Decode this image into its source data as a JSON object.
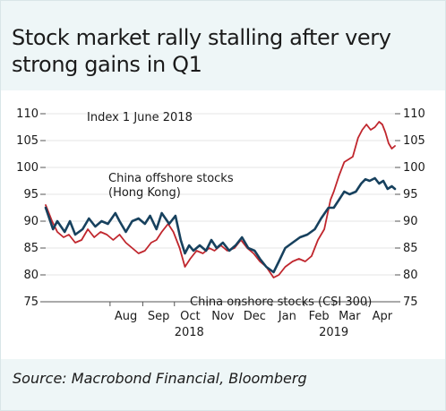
{
  "title": "Stock market rally stalling after very strong gains in Q1",
  "source": "Source: Macrobond Financial, Bloomberg",
  "colors": {
    "background": "#eef6f7",
    "plot_background": "#ffffff",
    "offshore_series": "#17415e",
    "onshore_series": "#c0262d"
  },
  "chart_data": {
    "type": "line",
    "annotation": "Index 1 June 2018",
    "ylim": [
      75,
      110
    ],
    "y_ticks": [
      75,
      80,
      85,
      90,
      95,
      100,
      105,
      110
    ],
    "y_tick_labels": [
      "75",
      "80",
      "85",
      "90",
      "95",
      "100",
      "105",
      "110"
    ],
    "x_range": [
      "2018-06-01",
      "2019-04-28"
    ],
    "month_labels": [
      {
        "label": "Aug",
        "date": "2018-08-16"
      },
      {
        "label": "Sep",
        "date": "2018-09-16"
      },
      {
        "label": "Oct",
        "date": "2018-10-16"
      },
      {
        "label": "Nov",
        "date": "2018-11-16"
      },
      {
        "label": "Dec",
        "date": "2018-12-16"
      },
      {
        "label": "Jan",
        "date": "2019-01-16"
      },
      {
        "label": "Feb",
        "date": "2019-02-15"
      },
      {
        "label": "Mar",
        "date": "2019-03-16"
      },
      {
        "label": "Apr",
        "date": "2019-04-16"
      }
    ],
    "month_ticks": [
      "2018-08-01",
      "2018-09-01",
      "2018-10-01",
      "2018-11-01",
      "2018-12-01",
      "2019-01-01",
      "2019-02-01",
      "2019-03-01",
      "2019-04-01"
    ],
    "year_labels": [
      {
        "label": "2018",
        "date": "2018-10-15"
      },
      {
        "label": "2019",
        "date": "2019-03-01"
      }
    ],
    "series": [
      {
        "name": "China offshore stocks (Hong Kong)",
        "color": "#17415e",
        "points": [
          [
            "2018-06-01",
            92.5
          ],
          [
            "2018-06-08",
            88.5
          ],
          [
            "2018-06-12",
            90
          ],
          [
            "2018-06-19",
            88
          ],
          [
            "2018-06-24",
            90
          ],
          [
            "2018-06-29",
            87.5
          ],
          [
            "2018-07-06",
            88.5
          ],
          [
            "2018-07-12",
            90.5
          ],
          [
            "2018-07-18",
            89
          ],
          [
            "2018-07-24",
            90
          ],
          [
            "2018-07-30",
            89.5
          ],
          [
            "2018-08-06",
            91.5
          ],
          [
            "2018-08-10",
            90
          ],
          [
            "2018-08-16",
            88
          ],
          [
            "2018-08-22",
            90
          ],
          [
            "2018-08-28",
            90.5
          ],
          [
            "2018-09-03",
            89.5
          ],
          [
            "2018-09-08",
            91
          ],
          [
            "2018-09-14",
            88.5
          ],
          [
            "2018-09-19",
            91.5
          ],
          [
            "2018-09-26",
            89.5
          ],
          [
            "2018-10-02",
            91
          ],
          [
            "2018-10-07",
            86.5
          ],
          [
            "2018-10-11",
            84
          ],
          [
            "2018-10-15",
            85.5
          ],
          [
            "2018-10-19",
            84.5
          ],
          [
            "2018-10-25",
            85.5
          ],
          [
            "2018-10-31",
            84.5
          ],
          [
            "2018-11-05",
            86.5
          ],
          [
            "2018-11-10",
            85
          ],
          [
            "2018-11-16",
            86
          ],
          [
            "2018-11-22",
            84.5
          ],
          [
            "2018-11-28",
            85.5
          ],
          [
            "2018-12-04",
            87
          ],
          [
            "2018-12-10",
            85
          ],
          [
            "2018-12-16",
            84.5
          ],
          [
            "2018-12-21",
            83
          ],
          [
            "2018-12-27",
            81.5
          ],
          [
            "2019-01-03",
            80.5
          ],
          [
            "2019-01-08",
            82.5
          ],
          [
            "2019-01-14",
            85
          ],
          [
            "2019-01-21",
            86
          ],
          [
            "2019-01-28",
            87
          ],
          [
            "2019-02-04",
            87.5
          ],
          [
            "2019-02-11",
            88.5
          ],
          [
            "2019-02-17",
            90.5
          ],
          [
            "2019-02-24",
            92.5
          ],
          [
            "2019-03-01",
            92.5
          ],
          [
            "2019-03-06",
            94
          ],
          [
            "2019-03-11",
            95.5
          ],
          [
            "2019-03-16",
            95
          ],
          [
            "2019-03-22",
            95.5
          ],
          [
            "2019-03-27",
            97
          ],
          [
            "2019-03-31",
            97.8
          ],
          [
            "2019-04-04",
            97.5
          ],
          [
            "2019-04-09",
            98
          ],
          [
            "2019-04-13",
            97
          ],
          [
            "2019-04-17",
            97.5
          ],
          [
            "2019-04-21",
            96
          ],
          [
            "2019-04-25",
            96.5
          ],
          [
            "2019-04-28",
            96
          ]
        ]
      },
      {
        "name": "China onshore stocks (CSI 300)",
        "color": "#c0262d",
        "points": [
          [
            "2018-06-01",
            93
          ],
          [
            "2018-06-07",
            90
          ],
          [
            "2018-06-12",
            88
          ],
          [
            "2018-06-18",
            87
          ],
          [
            "2018-06-23",
            87.5
          ],
          [
            "2018-06-29",
            86
          ],
          [
            "2018-07-05",
            86.5
          ],
          [
            "2018-07-11",
            88.5
          ],
          [
            "2018-07-17",
            87
          ],
          [
            "2018-07-23",
            88
          ],
          [
            "2018-07-29",
            87.5
          ],
          [
            "2018-08-04",
            86.5
          ],
          [
            "2018-08-10",
            87.5
          ],
          [
            "2018-08-16",
            86
          ],
          [
            "2018-08-22",
            85
          ],
          [
            "2018-08-28",
            84
          ],
          [
            "2018-09-03",
            84.5
          ],
          [
            "2018-09-09",
            86
          ],
          [
            "2018-09-14",
            86.5
          ],
          [
            "2018-09-19",
            88
          ],
          [
            "2018-09-25",
            89.5
          ],
          [
            "2018-09-30",
            88
          ],
          [
            "2018-10-06",
            85
          ],
          [
            "2018-10-11",
            81.5
          ],
          [
            "2018-10-16",
            83
          ],
          [
            "2018-10-22",
            84.5
          ],
          [
            "2018-10-28",
            84
          ],
          [
            "2018-11-03",
            85
          ],
          [
            "2018-11-08",
            84.5
          ],
          [
            "2018-11-14",
            85.5
          ],
          [
            "2018-11-20",
            84.5
          ],
          [
            "2018-11-27",
            85
          ],
          [
            "2018-12-03",
            86.5
          ],
          [
            "2018-12-09",
            85
          ],
          [
            "2018-12-15",
            84
          ],
          [
            "2018-12-21",
            82.5
          ],
          [
            "2018-12-27",
            81.5
          ],
          [
            "2019-01-03",
            79.5
          ],
          [
            "2019-01-08",
            80
          ],
          [
            "2019-01-14",
            81.5
          ],
          [
            "2019-01-21",
            82.5
          ],
          [
            "2019-01-27",
            83
          ],
          [
            "2019-02-02",
            82.5
          ],
          [
            "2019-02-08",
            83.5
          ],
          [
            "2019-02-14",
            86.5
          ],
          [
            "2019-02-20",
            88.5
          ],
          [
            "2019-02-26",
            94
          ],
          [
            "2019-03-01",
            95.5
          ],
          [
            "2019-03-06",
            98.5
          ],
          [
            "2019-03-11",
            101
          ],
          [
            "2019-03-15",
            101.5
          ],
          [
            "2019-03-19",
            102
          ],
          [
            "2019-03-24",
            105.5
          ],
          [
            "2019-03-28",
            107
          ],
          [
            "2019-04-01",
            108
          ],
          [
            "2019-04-05",
            107
          ],
          [
            "2019-04-09",
            107.5
          ],
          [
            "2019-04-13",
            108.5
          ],
          [
            "2019-04-16",
            108
          ],
          [
            "2019-04-19",
            106.5
          ],
          [
            "2019-04-22",
            104.5
          ],
          [
            "2019-04-25",
            103.5
          ],
          [
            "2019-04-28",
            104
          ]
        ]
      }
    ],
    "series_labels": [
      {
        "series": 0,
        "lines": [
          "China offshore stocks",
          "(Hong Kong)"
        ]
      },
      {
        "series": 1,
        "lines": [
          "China onshore stocks (CSI 300)"
        ]
      }
    ]
  }
}
